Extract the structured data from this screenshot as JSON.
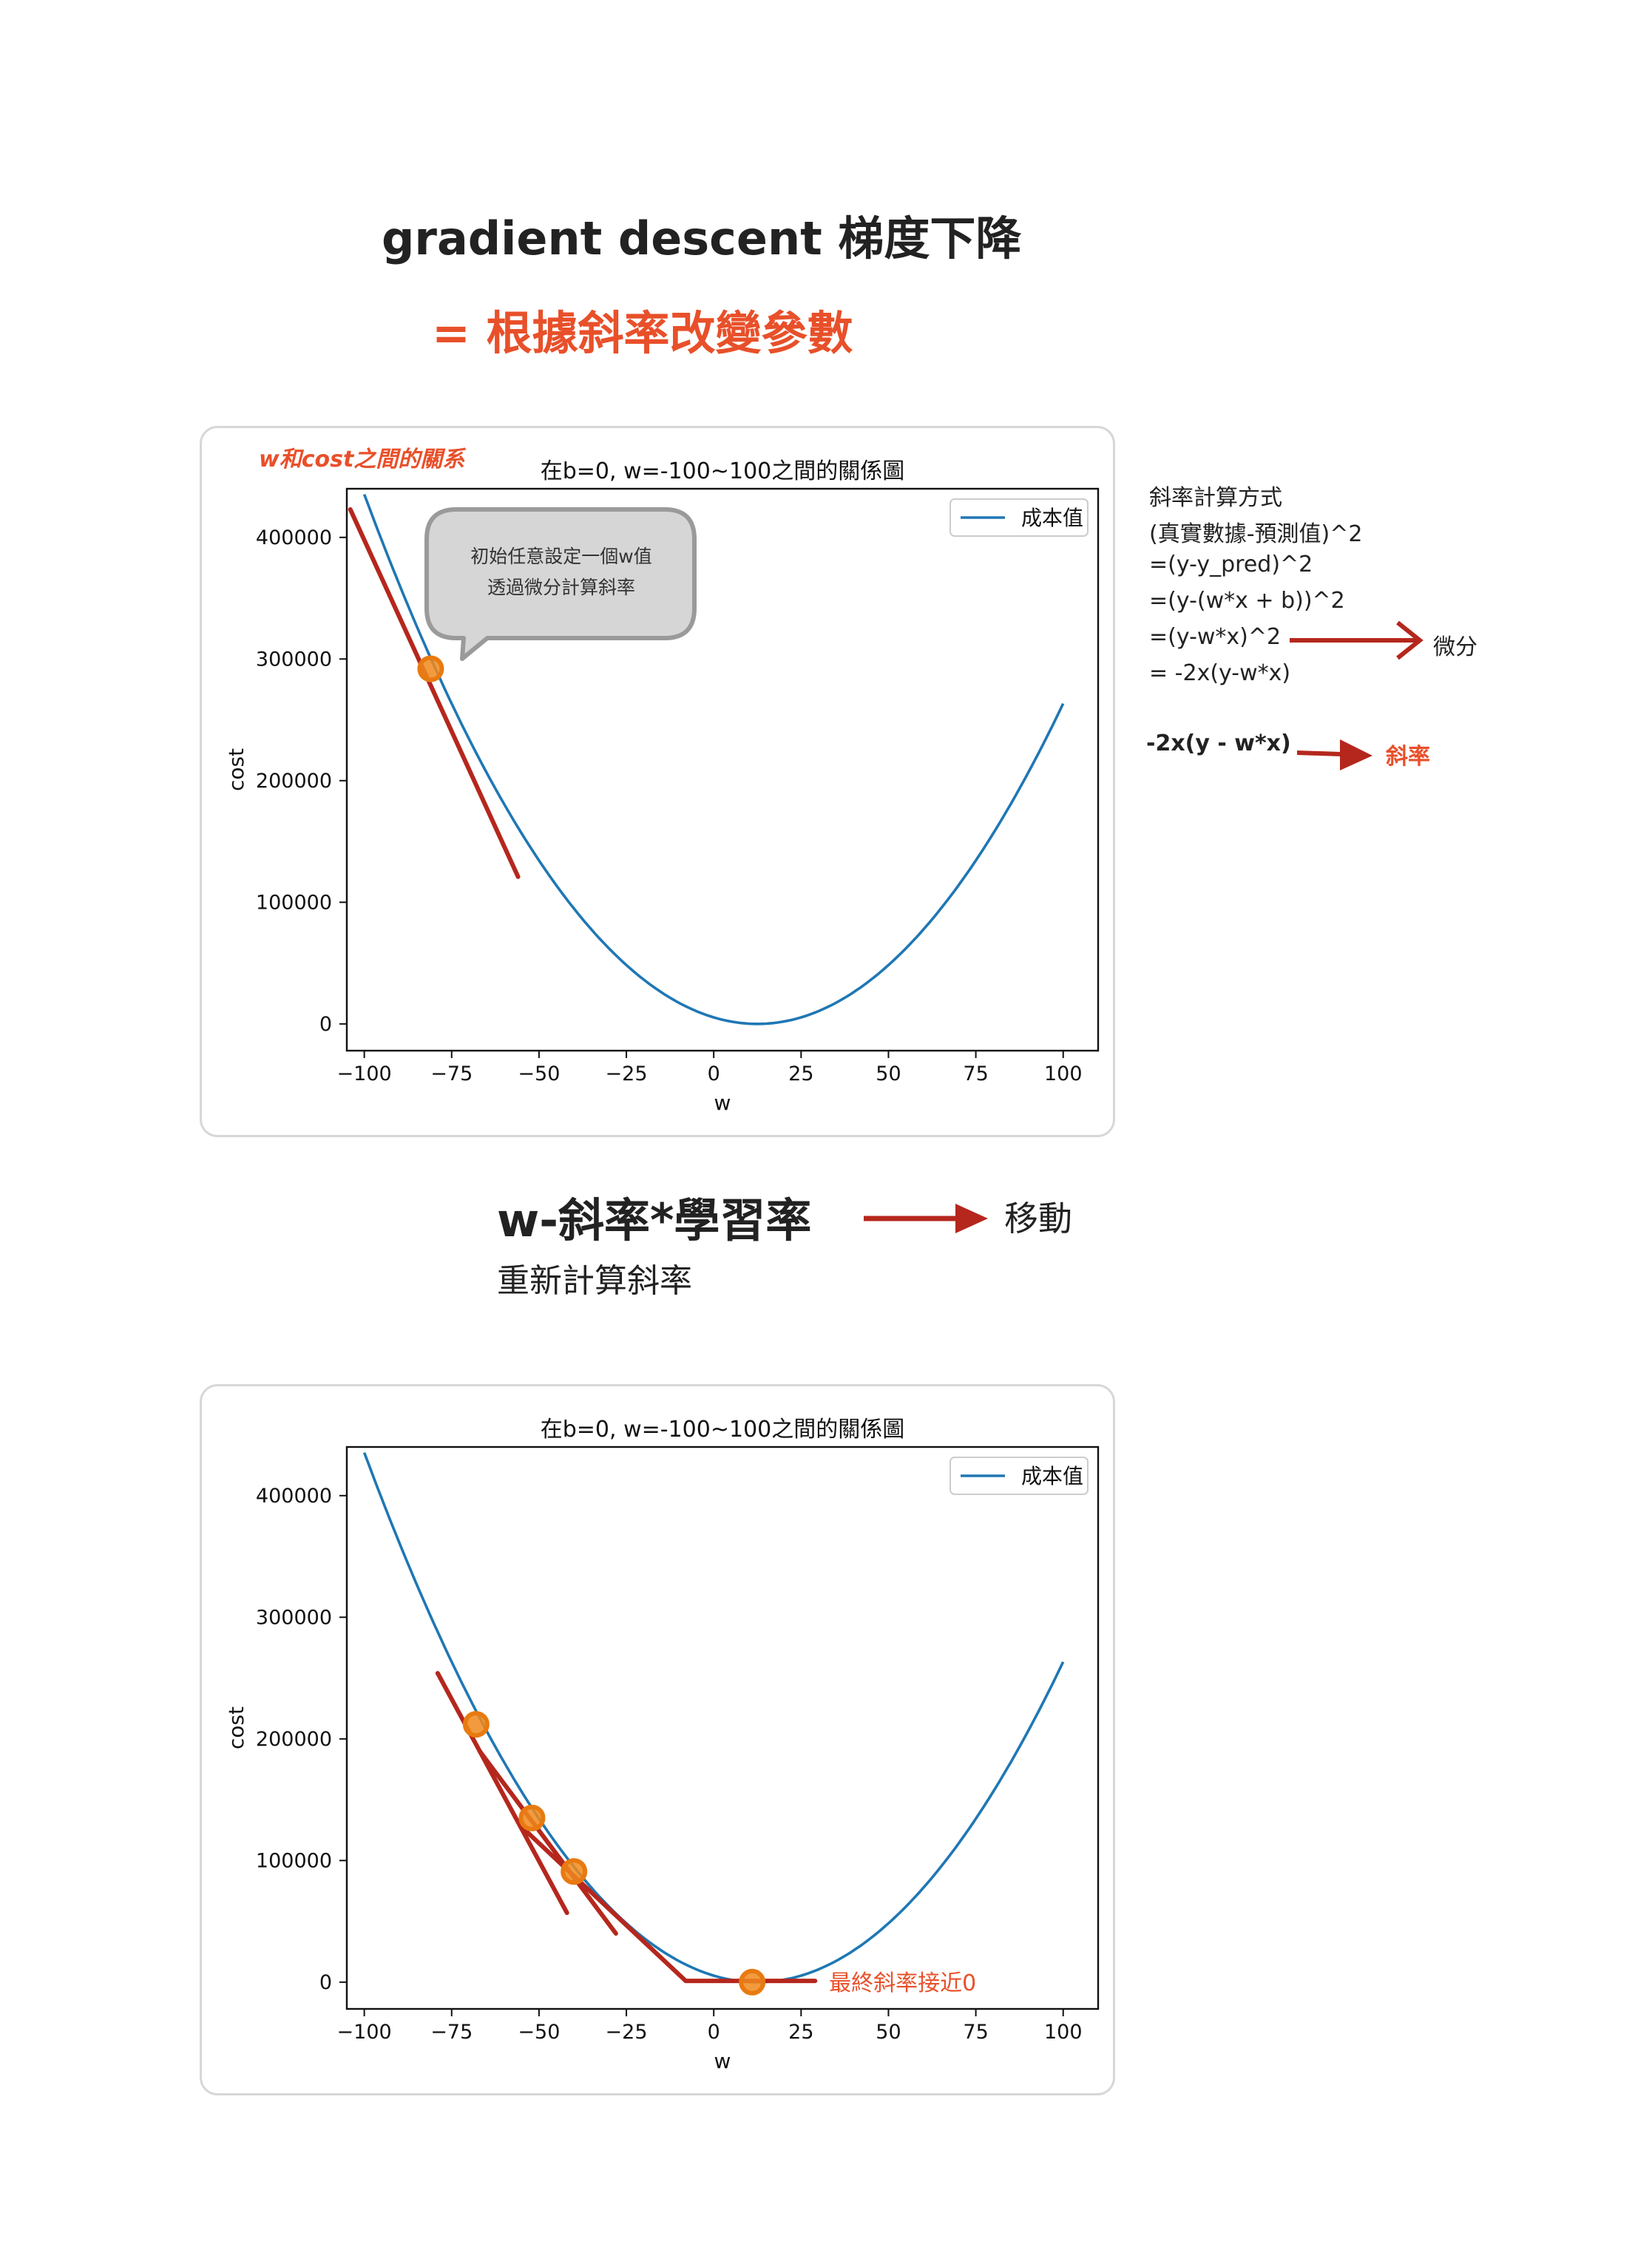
{
  "heading": {
    "title": "gradient descent 梯度下降",
    "subtitle": "= 根據斜率改變參數"
  },
  "annotations": {
    "relation_note": "w和cost之間的關系",
    "bubble_line1": "初始任意設定一個w值",
    "bubble_line2": "透過微分計算斜率",
    "final_note": "最終斜率接近0"
  },
  "formula": {
    "lines": [
      "斜率計算方式",
      "(真實數據-預測值)^2",
      "=(y-y_pred)^2",
      "=(y-(w*x + b))^2",
      "=(y-w*x)^2",
      "= -2x(y-w*x)"
    ],
    "derivative_label": "微分",
    "result_expr": "-2x(y - w*x)",
    "slope_label": "斜率"
  },
  "update": {
    "rule": "w-斜率*學習率",
    "move_label": "移動",
    "recalc": "重新計算斜率"
  },
  "colors": {
    "curve": "#1f77b4",
    "tangent": "#b5271d",
    "point": "#f08a1c",
    "accent": "#e8502a",
    "arrow": "#b5271d",
    "bubble_fill": "#d6d6d6",
    "bubble_border": "#9a9a9a"
  },
  "chart_data": [
    {
      "type": "line",
      "title": "在b=0, w=-100~100之間的關係圖",
      "xlabel": "w",
      "ylabel": "cost",
      "xlim": [
        -105,
        110
      ],
      "ylim": [
        -22000,
        440000
      ],
      "x_ticks": [
        -100,
        -75,
        -50,
        -25,
        0,
        25,
        50,
        75,
        100
      ],
      "x_tick_labels": [
        "−100",
        "−75",
        "−50",
        "−25",
        "0",
        "25",
        "50",
        "75",
        "100"
      ],
      "y_ticks": [
        0,
        100000,
        200000,
        300000,
        400000
      ],
      "y_tick_labels": [
        "0",
        "100000",
        "200000",
        "300000",
        "400000"
      ],
      "legend": "top-right",
      "series": [
        {
          "name": "成本值",
          "curve": {
            "a": 34.4,
            "w0": 12.5,
            "x_range": [
              -100,
              100
            ]
          }
        }
      ],
      "points": [
        {
          "w": -81,
          "cost": 292000
        }
      ],
      "tangents": [
        {
          "from": [
            -104,
            423000
          ],
          "to": [
            -56,
            121000
          ]
        }
      ]
    },
    {
      "type": "line",
      "title": "在b=0, w=-100~100之間的關係圖",
      "xlabel": "w",
      "ylabel": "cost",
      "xlim": [
        -105,
        110
      ],
      "ylim": [
        -22000,
        440000
      ],
      "x_ticks": [
        -100,
        -75,
        -50,
        -25,
        0,
        25,
        50,
        75,
        100
      ],
      "x_tick_labels": [
        "−100",
        "−75",
        "−50",
        "−25",
        "0",
        "25",
        "50",
        "75",
        "100"
      ],
      "y_ticks": [
        0,
        100000,
        200000,
        300000,
        400000
      ],
      "y_tick_labels": [
        "0",
        "100000",
        "200000",
        "300000",
        "400000"
      ],
      "legend": "top-right",
      "series": [
        {
          "name": "成本值",
          "curve": {
            "a": 34.4,
            "w0": 12.5,
            "x_range": [
              -100,
              100
            ]
          }
        }
      ],
      "points": [
        {
          "w": -68,
          "cost": 212000
        },
        {
          "w": -52,
          "cost": 135000
        },
        {
          "w": -40,
          "cost": 91000
        },
        {
          "w": 11,
          "cost": 0
        }
      ],
      "tangents": [
        {
          "from": [
            -79,
            254000
          ],
          "to": [
            -42,
            57000
          ]
        },
        {
          "from": [
            -67,
            190000
          ],
          "to": [
            -28,
            40000
          ]
        },
        {
          "from": [
            -54,
            125000
          ],
          "to": [
            -8,
            1000
          ]
        },
        {
          "from": [
            -8,
            1000
          ],
          "to": [
            29,
            1000
          ]
        }
      ]
    }
  ]
}
